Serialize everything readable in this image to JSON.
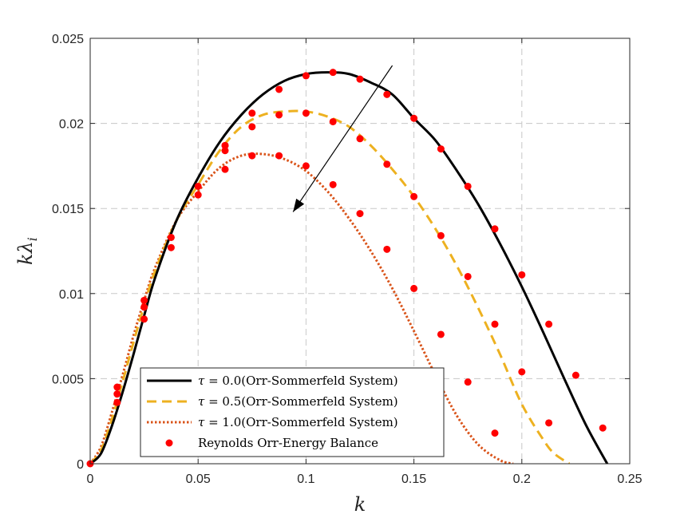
{
  "chart_data": {
    "type": "line",
    "title": "",
    "xlabel": "k",
    "ylabel": "kλ",
    "ylabel_subscript": "i",
    "xlim": [
      0,
      0.25
    ],
    "ylim": [
      0,
      0.025
    ],
    "xticks": [
      0,
      0.05,
      0.1,
      0.15,
      0.2,
      0.25
    ],
    "xtick_labels": [
      "0",
      "0.05",
      "0.1",
      "0.15",
      "0.2",
      "0.25"
    ],
    "yticks": [
      0,
      0.005,
      0.01,
      0.015,
      0.02,
      0.025
    ],
    "ytick_labels": [
      "0",
      "0.005",
      "0.01",
      "0.015",
      "0.02",
      "0.025"
    ],
    "grid": true,
    "legend_position": "bottom-left",
    "series": [
      {
        "name": "τ = 0.0(Orr-Sommerfeld System)",
        "style": "solid",
        "color": "#000000",
        "x": [
          0,
          0.005,
          0.01,
          0.015,
          0.02,
          0.025,
          0.03,
          0.04,
          0.05,
          0.06,
          0.07,
          0.08,
          0.09,
          0.1,
          0.11,
          0.12,
          0.13,
          0.14,
          0.15,
          0.16,
          0.17,
          0.18,
          0.19,
          0.2,
          0.21,
          0.22,
          0.23,
          0.24
        ],
        "y": [
          0,
          0.0006,
          0.0022,
          0.0042,
          0.0064,
          0.0087,
          0.0109,
          0.0143,
          0.0168,
          0.0189,
          0.0205,
          0.0217,
          0.0225,
          0.0229,
          0.023,
          0.0229,
          0.0224,
          0.0217,
          0.0203,
          0.019,
          0.0172,
          0.0152,
          0.0129,
          0.0104,
          0.0077,
          0.0049,
          0.0022,
          -0.0001
        ]
      },
      {
        "name": "τ = 0.5(Orr-Sommerfeld System)",
        "style": "dashed",
        "color": "#EDB120",
        "x": [
          0,
          0.005,
          0.01,
          0.015,
          0.02,
          0.025,
          0.03,
          0.04,
          0.05,
          0.06,
          0.07,
          0.08,
          0.09,
          0.1,
          0.11,
          0.12,
          0.13,
          0.14,
          0.15,
          0.16,
          0.17,
          0.18,
          0.19,
          0.2,
          0.21,
          0.215,
          0.222
        ],
        "y": [
          0,
          0.0008,
          0.0026,
          0.0048,
          0.0071,
          0.0093,
          0.0113,
          0.0143,
          0.0164,
          0.0184,
          0.0198,
          0.0205,
          0.0207,
          0.0207,
          0.0204,
          0.0198,
          0.0187,
          0.0173,
          0.0157,
          0.0138,
          0.0116,
          0.0091,
          0.0064,
          0.0035,
          0.0014,
          0.0006,
          0.0
        ]
      },
      {
        "name": "τ = 1.0(Orr-Sommerfeld System)",
        "style": "dotted",
        "color": "#D95319",
        "x": [
          0,
          0.005,
          0.01,
          0.015,
          0.02,
          0.025,
          0.03,
          0.04,
          0.05,
          0.06,
          0.07,
          0.08,
          0.09,
          0.1,
          0.11,
          0.12,
          0.13,
          0.14,
          0.15,
          0.16,
          0.17,
          0.18,
          0.19,
          0.196
        ],
        "y": [
          0,
          0.001,
          0.003,
          0.0052,
          0.0075,
          0.0096,
          0.0115,
          0.0143,
          0.016,
          0.0174,
          0.0181,
          0.0182,
          0.0179,
          0.0172,
          0.016,
          0.0144,
          0.0125,
          0.0103,
          0.0078,
          0.0052,
          0.0028,
          0.0011,
          0.0002,
          0.0
        ]
      },
      {
        "name": "Reynolds Orr-Energy Balance",
        "style": "markers",
        "color": "#FF0000",
        "x": [
          0,
          0.0125,
          0.0125,
          0.0125,
          0.025,
          0.025,
          0.025,
          0.0375,
          0.0375,
          0.05,
          0.05,
          0.0625,
          0.0625,
          0.0625,
          0.0625,
          0.075,
          0.075,
          0.075,
          0.0875,
          0.0875,
          0.0875,
          0.1,
          0.1,
          0.1,
          0.1125,
          0.1125,
          0.1125,
          0.125,
          0.125,
          0.125,
          0.1375,
          0.1375,
          0.1375,
          0.15,
          0.15,
          0.15,
          0.1625,
          0.1625,
          0.1625,
          0.175,
          0.175,
          0.175,
          0.1875,
          0.1875,
          0.1875,
          0.2,
          0.2,
          0.2125,
          0.2125,
          0.225,
          0.2375
        ],
        "y": [
          0,
          0.0036,
          0.0041,
          0.0045,
          0.0085,
          0.0092,
          0.0096,
          0.0127,
          0.0133,
          0.0158,
          0.0163,
          0.0173,
          0.0184,
          0.0187,
          0.0187,
          0.0181,
          0.0198,
          0.0206,
          0.0181,
          0.0205,
          0.022,
          0.0175,
          0.0206,
          0.0228,
          0.0164,
          0.0201,
          0.023,
          0.0147,
          0.0191,
          0.0226,
          0.0126,
          0.0176,
          0.0217,
          0.0103,
          0.0157,
          0.0203,
          0.0076,
          0.0134,
          0.0185,
          0.0048,
          0.011,
          0.0163,
          0.0018,
          0.0082,
          0.0138,
          0.0054,
          0.0111,
          0.0024,
          0.0082,
          0.0052,
          0.0021
        ]
      }
    ],
    "legend": {
      "entries": [
        "τ = 0.0(Orr-Sommerfeld System)",
        "τ = 0.5(Orr-Sommerfeld System)",
        "τ = 1.0(Orr-Sommerfeld System)",
        "Reynolds Orr-Energy Balance"
      ]
    },
    "annotation": {
      "type": "arrow",
      "from": [
        0.14,
        0.0234
      ],
      "to": [
        0.094,
        0.0148
      ]
    }
  }
}
